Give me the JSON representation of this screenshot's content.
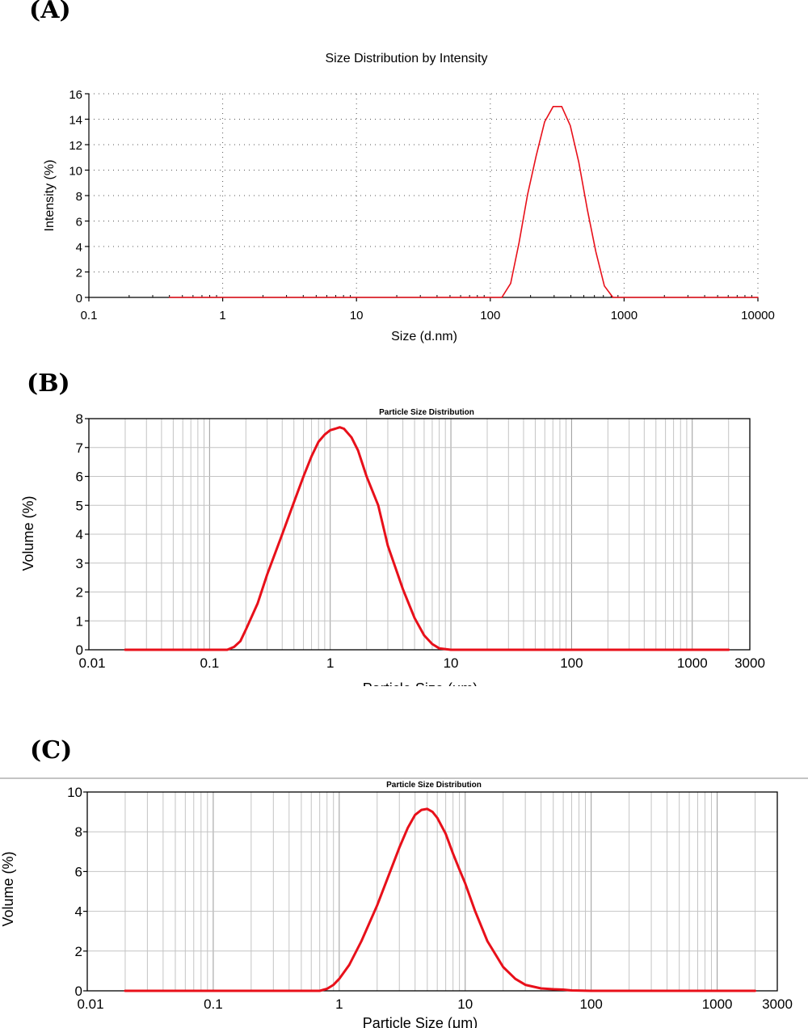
{
  "panels": {
    "a": {
      "label": "(A)"
    },
    "b": {
      "label": "(B)"
    },
    "c": {
      "label": "(C)"
    }
  },
  "chart_data": [
    {
      "id": "a",
      "type": "line",
      "title": "Size Distribution by Intensity",
      "xlabel": "Size (d.nm)",
      "ylabel": "Intensity (%)",
      "x_scale": "log",
      "xlim": [
        0.1,
        10000
      ],
      "ylim": [
        0,
        16
      ],
      "x_ticks": [
        0.1,
        1,
        10,
        100,
        1000,
        10000
      ],
      "x_tick_labels": [
        "0.1",
        "1",
        "10",
        "100",
        "1000",
        "10000"
      ],
      "y_ticks": [
        0,
        2,
        4,
        6,
        8,
        10,
        12,
        14,
        16
      ],
      "y_tick_labels": [
        "0",
        "2",
        "4",
        "6",
        "8",
        "10",
        "12",
        "14",
        "16"
      ],
      "grid": "dotted",
      "series": [
        {
          "color": "#e8101a",
          "x": [
            0.4,
            1,
            10,
            100,
            122,
            142,
            164,
            190,
            220,
            255,
            295,
            342,
            396,
            459,
            531,
            615,
            712,
            825,
            1000,
            10000
          ],
          "y": [
            0,
            0,
            0,
            0,
            0,
            1.1,
            4.3,
            8.1,
            11.1,
            13.8,
            15.0,
            15.0,
            13.5,
            10.6,
            6.9,
            3.6,
            0.9,
            0,
            0,
            0
          ]
        }
      ]
    },
    {
      "id": "b",
      "type": "line",
      "title": "Particle Size Distribution",
      "xlabel": "Particle Size (μm)",
      "ylabel": "Volume (%)",
      "x_scale": "log",
      "xlim": [
        0.01,
        3000
      ],
      "ylim": [
        0,
        8
      ],
      "x_ticks": [
        0.01,
        0.1,
        1,
        10,
        100,
        1000,
        3000
      ],
      "x_tick_labels": [
        "0.01",
        "0.1",
        "1",
        "10",
        "100",
        "1000",
        "3000"
      ],
      "y_ticks": [
        0,
        1,
        2,
        3,
        4,
        5,
        6,
        7,
        8
      ],
      "y_tick_labels": [
        "0",
        "1",
        "2",
        "3",
        "4",
        "5",
        "6",
        "7",
        "8"
      ],
      "grid": "solid",
      "series": [
        {
          "color": "#e8101a",
          "x": [
            0.02,
            0.1,
            0.14,
            0.16,
            0.18,
            0.2,
            0.25,
            0.3,
            0.4,
            0.5,
            0.6,
            0.7,
            0.8,
            0.9,
            1.0,
            1.1,
            1.2,
            1.3,
            1.5,
            1.7,
            2.0,
            2.5,
            3.0,
            4.0,
            5.0,
            6.0,
            7.0,
            8.0,
            10.0,
            20,
            100,
            1000,
            2000
          ],
          "y": [
            0,
            0,
            0,
            0.1,
            0.3,
            0.7,
            1.6,
            2.6,
            4.0,
            5.1,
            6.0,
            6.7,
            7.2,
            7.45,
            7.6,
            7.65,
            7.7,
            7.65,
            7.35,
            6.9,
            6.0,
            5.0,
            3.6,
            2.1,
            1.1,
            0.5,
            0.2,
            0.05,
            0,
            0,
            0,
            0,
            0
          ]
        }
      ]
    },
    {
      "id": "c",
      "type": "line",
      "title": "Particle Size Distribution",
      "xlabel": "Particle Size (μm)",
      "ylabel": "Volume (%)",
      "x_scale": "log",
      "xlim": [
        0.01,
        3000
      ],
      "ylim": [
        0,
        10
      ],
      "x_ticks": [
        0.01,
        0.1,
        1,
        10,
        100,
        1000,
        3000
      ],
      "x_tick_labels": [
        "0.01",
        "0.1",
        "1",
        "10",
        "100",
        "1000",
        "3000"
      ],
      "y_ticks": [
        0,
        2,
        4,
        6,
        8,
        10
      ],
      "y_tick_labels": [
        "0",
        "2",
        "4",
        "6",
        "8",
        "10"
      ],
      "grid": "solid",
      "series": [
        {
          "color": "#e8101a",
          "x": [
            0.02,
            0.1,
            0.5,
            0.7,
            0.8,
            0.9,
            1.0,
            1.2,
            1.5,
            2.0,
            2.5,
            3.0,
            3.5,
            4.0,
            4.5,
            5.0,
            5.5,
            6.0,
            7.0,
            8.0,
            9.0,
            10,
            12,
            15,
            20,
            25,
            30,
            40,
            50,
            60,
            70,
            100,
            1000,
            2000
          ],
          "y": [
            0,
            0,
            0,
            0,
            0.1,
            0.3,
            0.6,
            1.3,
            2.5,
            4.3,
            5.9,
            7.2,
            8.2,
            8.85,
            9.1,
            9.15,
            9.0,
            8.7,
            7.9,
            6.9,
            6.1,
            5.4,
            4.0,
            2.5,
            1.2,
            0.6,
            0.3,
            0.12,
            0.08,
            0.06,
            0.02,
            0,
            0,
            0
          ]
        }
      ]
    }
  ]
}
